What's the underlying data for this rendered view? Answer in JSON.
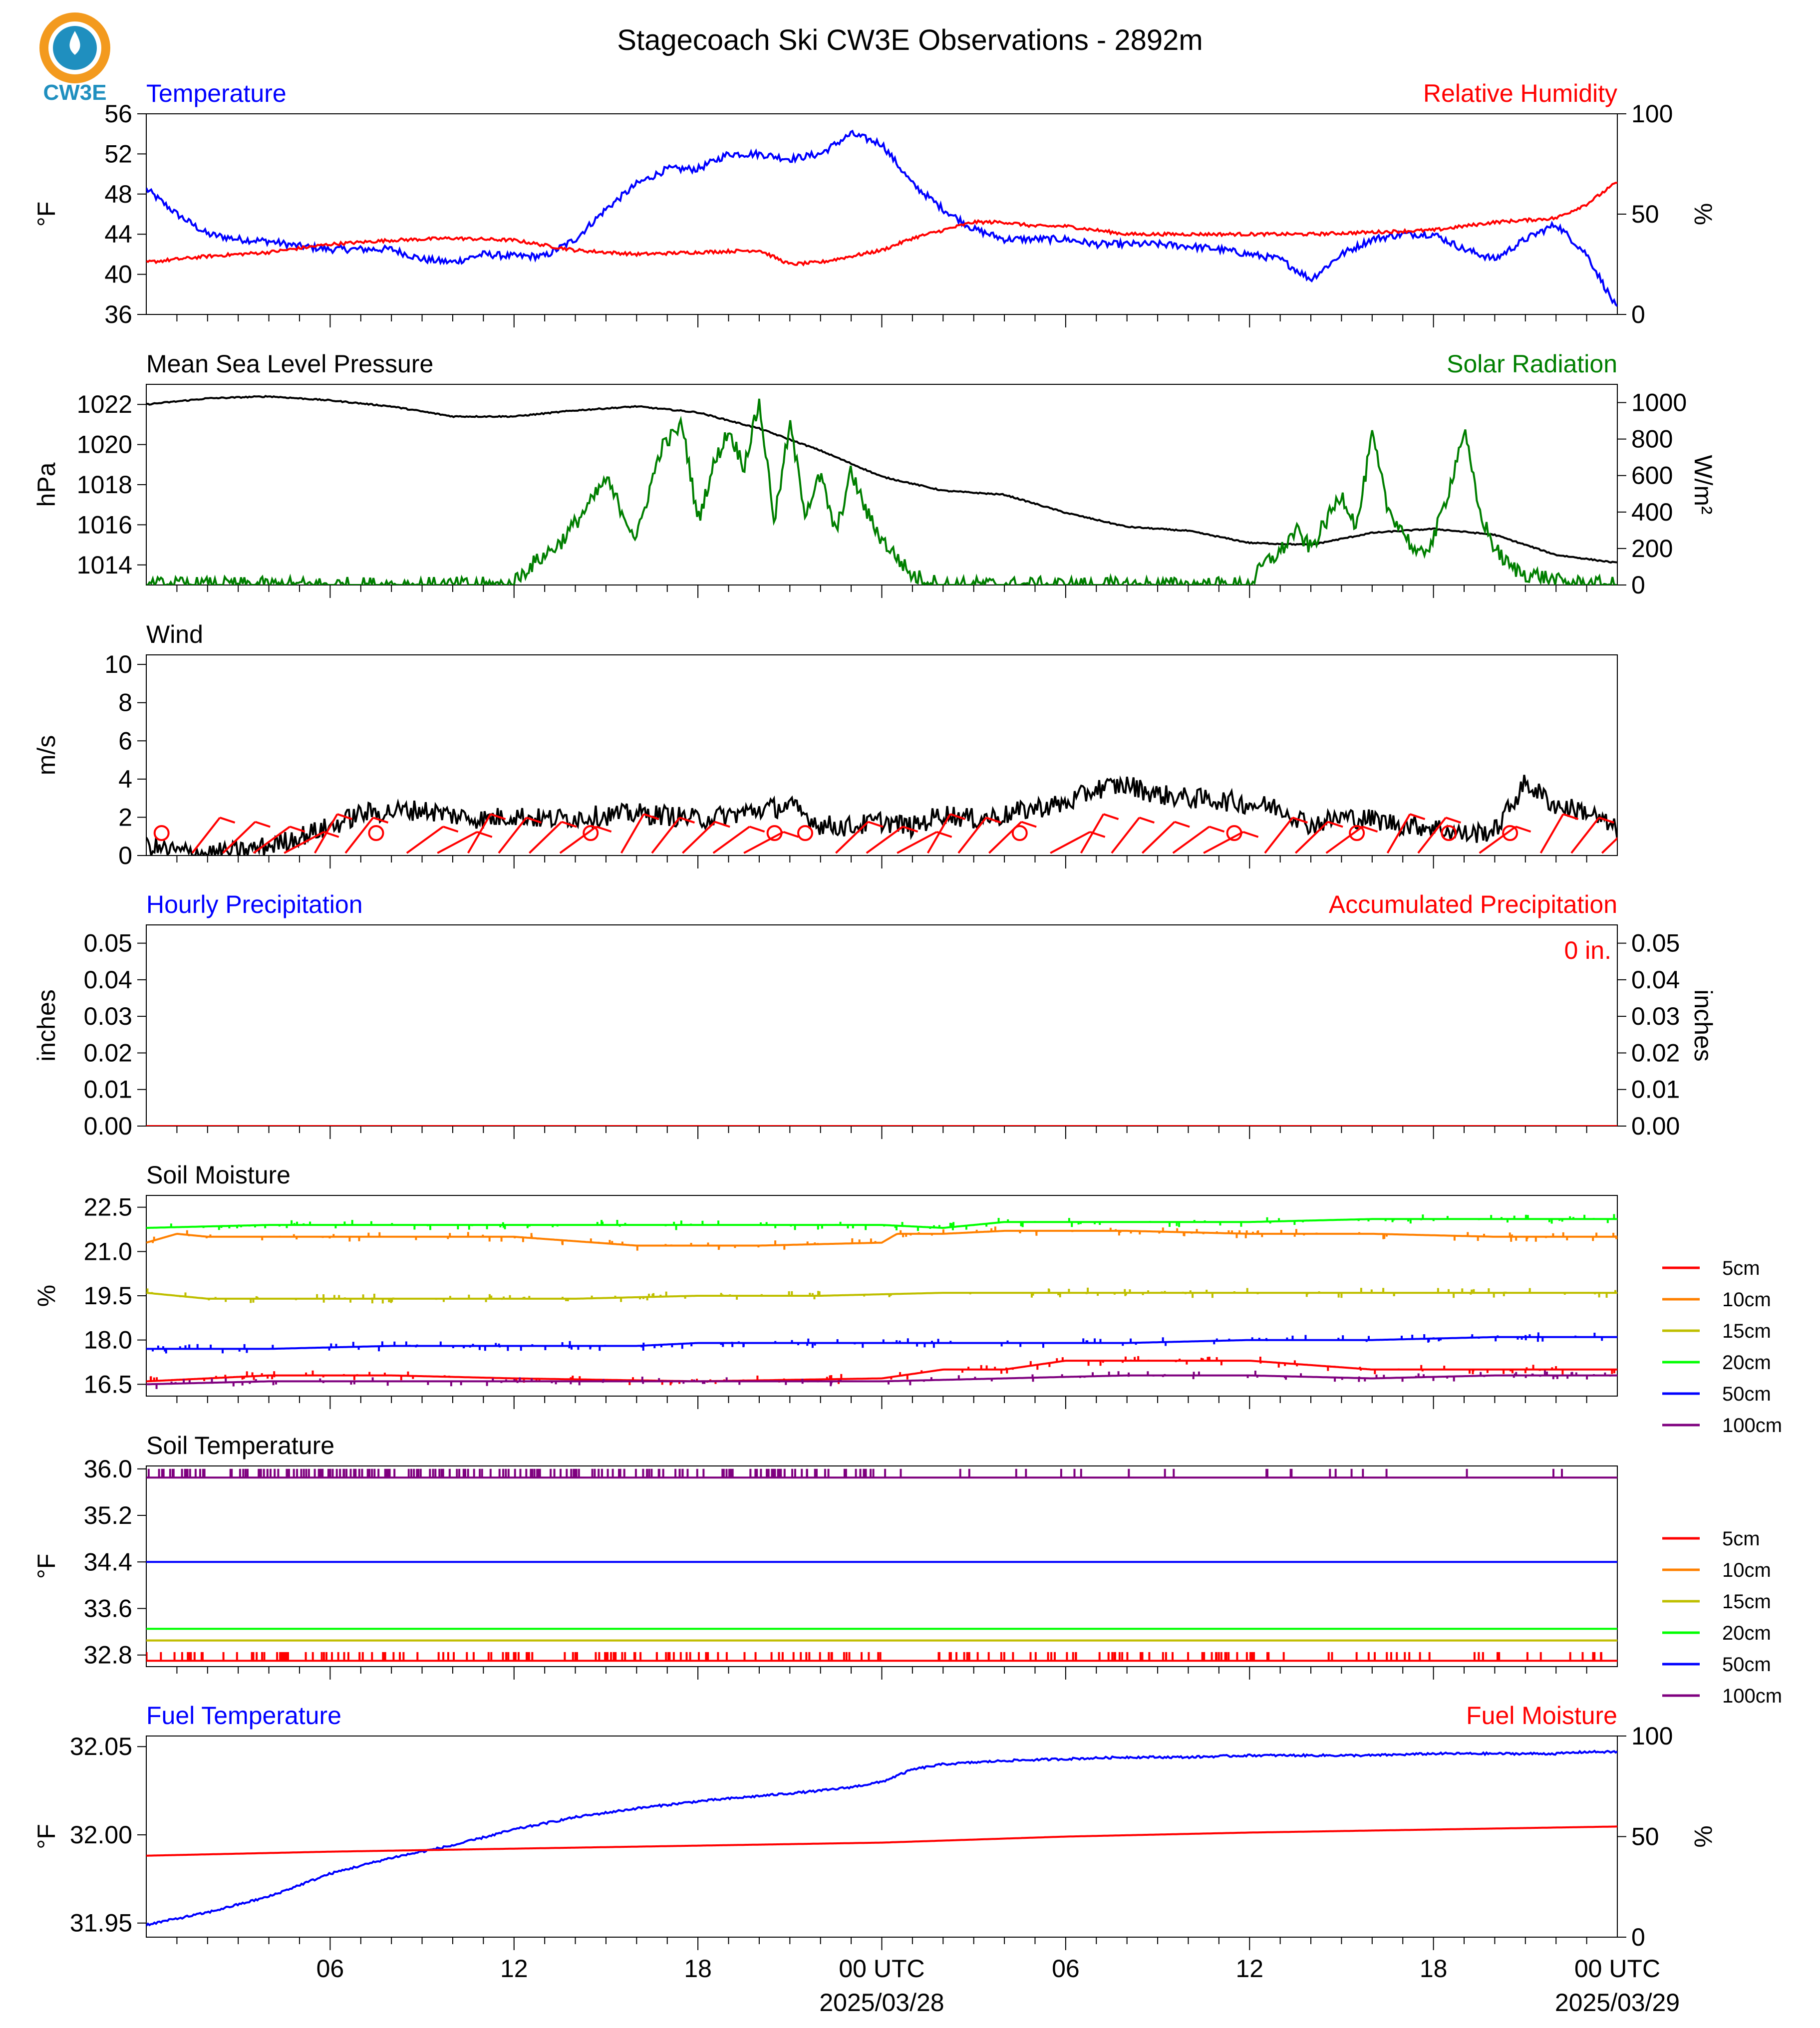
{
  "title": "Stagecoach Ski CW3E Observations - 2892m",
  "logo": {
    "text": "CW3E",
    "icon": "cw3e-logo-icon"
  },
  "colors": {
    "blue": "#0000ff",
    "red": "#ff0000",
    "green": "#007f00",
    "black": "#000000",
    "orange": "#ff8000",
    "olive": "#bfbf00",
    "lime": "#00ff00",
    "purple": "#7f007f"
  },
  "time_axis": {
    "tick_labels": [
      "06",
      "12",
      "18",
      "00 UTC",
      "06",
      "12",
      "18",
      "00 UTC"
    ],
    "date_labels": [
      "2025/03/28",
      "2025/03/29"
    ]
  },
  "chart_data": [
    {
      "id": "temperature_rh",
      "type": "line",
      "title_left": "Temperature",
      "title_right": "Relative Humidity",
      "ylabel": "°F",
      "ylabel_right": "%",
      "ylim": [
        36,
        56
      ],
      "ylim_right": [
        0,
        100
      ],
      "yticks": [
        36,
        40,
        44,
        48,
        52,
        56
      ],
      "yticks_right": [
        0,
        50,
        100
      ],
      "series": [
        {
          "axis": "left",
          "color": "#0000ff",
          "x": [
            0,
            1,
            2,
            3,
            4,
            5,
            6,
            7,
            8,
            9,
            10,
            11,
            12,
            13,
            14,
            15,
            16,
            17,
            18,
            19,
            20,
            21,
            22,
            23,
            24,
            25,
            26,
            27,
            28,
            29,
            30,
            31,
            32,
            33,
            34,
            35,
            36,
            37,
            38,
            39,
            40,
            41,
            42,
            43,
            44,
            45,
            46,
            47,
            48
          ],
          "y": [
            48.5,
            46,
            44,
            43.5,
            43.3,
            42.8,
            42.5,
            42.5,
            42.5,
            41.5,
            41.2,
            42,
            41.8,
            41.8,
            43.5,
            46.5,
            49,
            50.5,
            50.5,
            52,
            52,
            51.5,
            52,
            54,
            53,
            49,
            46.5,
            44.5,
            43.5,
            43.5,
            43.5,
            43,
            43,
            43,
            42.8,
            42.5,
            42,
            41.5,
            39.5,
            42,
            43.5,
            44,
            44,
            42.5,
            41.5,
            43.5,
            45,
            42,
            36.5
          ]
        },
        {
          "axis": "right",
          "color": "#ff0000",
          "x": [
            0,
            2,
            4,
            6,
            8,
            10,
            12,
            14,
            16,
            18,
            20,
            21,
            22,
            24,
            25,
            26,
            27,
            28,
            29,
            30,
            32,
            34,
            36,
            38,
            40,
            42,
            44,
            46,
            47,
            48
          ],
          "y": [
            26,
            29,
            31,
            35,
            37,
            38,
            37,
            32,
            30,
            31,
            32,
            25,
            26,
            32,
            38,
            42,
            46,
            46,
            44,
            44,
            40,
            40,
            40,
            40,
            41,
            42,
            46,
            48,
            55,
            66
          ]
        }
      ]
    },
    {
      "id": "pressure_solar",
      "type": "line",
      "title_left": "Mean Sea Level Pressure",
      "title_right": "Solar Radiation",
      "ylabel": "hPa",
      "ylabel_right": "W/m²",
      "ylim": [
        1013,
        1023
      ],
      "ylim_right": [
        0,
        1100
      ],
      "yticks": [
        1014,
        1016,
        1018,
        1020,
        1022
      ],
      "yticks_right": [
        0,
        200,
        400,
        600,
        800,
        1000
      ],
      "series": [
        {
          "axis": "left",
          "color": "#000000",
          "x": [
            0,
            2,
            4,
            6,
            8,
            10,
            12,
            14,
            16,
            18,
            20,
            22,
            24,
            26,
            28,
            30,
            32,
            34,
            36,
            38,
            40,
            42,
            44,
            46,
            48
          ],
          "y": [
            1022,
            1022.3,
            1022.4,
            1022.2,
            1021.9,
            1021.4,
            1021.4,
            1021.7,
            1021.9,
            1021.6,
            1020.8,
            1019.7,
            1018.4,
            1017.7,
            1017.5,
            1016.6,
            1015.9,
            1015.7,
            1015.1,
            1015,
            1015.6,
            1015.8,
            1015.5,
            1014.5,
            1014.1
          ]
        },
        {
          "axis": "right",
          "color": "#007f00",
          "x": [
            0,
            11.9,
            12.5,
            13.5,
            14.5,
            15,
            16,
            16.3,
            16.8,
            17.5,
            18,
            18.5,
            19,
            19.5,
            20,
            20.5,
            21,
            21.5,
            22,
            22.5,
            23,
            23.5,
            24,
            24.5,
            25,
            26,
            36,
            36.5,
            37,
            37.5,
            38,
            38.5,
            39,
            39.5,
            40,
            40.5,
            41,
            41.5,
            42,
            42.5,
            43,
            43.5,
            44,
            44.5,
            45,
            45.5,
            46,
            46.5,
            47,
            48
          ],
          "y": [
            0,
            0,
            100,
            230,
            450,
            580,
            250,
            450,
            750,
            880,
            350,
            650,
            850,
            650,
            1000,
            350,
            880,
            400,
            600,
            280,
            620,
            400,
            250,
            150,
            50,
            0,
            0,
            120,
            180,
            300,
            200,
            350,
            500,
            320,
            820,
            420,
            300,
            150,
            250,
            520,
            850,
            400,
            200,
            100,
            60,
            50,
            20,
            10,
            5,
            0
          ]
        }
      ]
    },
    {
      "id": "wind",
      "type": "line",
      "title_left": "Wind",
      "ylabel": "m/s",
      "ylim": [
        0,
        10.5
      ],
      "yticks": [
        0,
        2,
        4,
        6,
        8,
        10
      ],
      "series": [
        {
          "axis": "left",
          "color": "#000000",
          "x": [
            0,
            1,
            2,
            3,
            4,
            5,
            6,
            7,
            8,
            9,
            10,
            11,
            12,
            13,
            14,
            15,
            16,
            17,
            18,
            19,
            20,
            21,
            22,
            23,
            24,
            25,
            26,
            27,
            28,
            29,
            30,
            31,
            32,
            33,
            34,
            35,
            36,
            37,
            38,
            39,
            40,
            41,
            42,
            43,
            44,
            45,
            46,
            47,
            48
          ],
          "y": [
            0.5,
            0.2,
            0.1,
            0.2,
            0.5,
            1,
            1.5,
            2.2,
            2.3,
            2.4,
            2.1,
            1.9,
            2.1,
            1.9,
            2,
            2.1,
            2.2,
            2.1,
            1.9,
            2.1,
            2.4,
            2.6,
            1.6,
            1.5,
            1.8,
            1.5,
            2.2,
            1.9,
            2.1,
            2.5,
            2.7,
            3.5,
            3.7,
            3.2,
            3,
            2.9,
            2.7,
            2.5,
            1.6,
            2,
            1.9,
            1.6,
            1.5,
            1.1,
            1.3,
            3.8,
            2.6,
            2.3,
            1.3
          ]
        }
      ],
      "barbs": {
        "color": "#ff0000",
        "count": 48
      }
    },
    {
      "id": "precipitation",
      "type": "line",
      "title_left": "Hourly Precipitation",
      "title_right": "Accumulated Precipitation",
      "ylabel": "inches",
      "ylabel_right": "inches",
      "ylim": [
        0,
        0.055
      ],
      "yticks": [
        0.0,
        0.01,
        0.02,
        0.03,
        0.04,
        0.05
      ],
      "annotation": "0 in.",
      "series": [
        {
          "axis": "left",
          "color": "#0000ff",
          "x": [
            0,
            48
          ],
          "y": [
            0,
            0
          ]
        },
        {
          "axis": "left",
          "color": "#ff0000",
          "x": [
            0,
            48
          ],
          "y": [
            0,
            0
          ]
        }
      ]
    },
    {
      "id": "soil_moisture",
      "type": "line",
      "title_left": "Soil Moisture",
      "ylabel": "%",
      "ylim": [
        16.1,
        22.9
      ],
      "yticks": [
        16.5,
        18.0,
        19.5,
        21.0,
        22.5
      ],
      "legend_position": "right",
      "series": [
        {
          "name": "5cm",
          "color": "#ff0000",
          "x": [
            0,
            2,
            4,
            8,
            12,
            18,
            24,
            26,
            28,
            30,
            36,
            40,
            44,
            46,
            48
          ],
          "y": [
            16.6,
            16.7,
            16.8,
            16.8,
            16.7,
            16.6,
            16.7,
            17.0,
            17.0,
            17.3,
            17.3,
            17.0,
            17.0,
            17.0,
            17.0
          ]
        },
        {
          "name": "10cm",
          "color": "#ff8000",
          "x": [
            0,
            1,
            2,
            6,
            10,
            12,
            16,
            20,
            24,
            24.5,
            26,
            28,
            32,
            36,
            40,
            44,
            48
          ],
          "y": [
            21.3,
            21.6,
            21.5,
            21.5,
            21.5,
            21.5,
            21.2,
            21.2,
            21.3,
            21.6,
            21.6,
            21.7,
            21.7,
            21.6,
            21.6,
            21.5,
            21.5
          ]
        },
        {
          "name": "15cm",
          "color": "#bfbf00",
          "x": [
            0,
            2,
            6,
            10,
            14,
            18,
            22,
            26,
            30,
            34,
            38,
            42,
            46,
            48
          ],
          "y": [
            19.6,
            19.4,
            19.4,
            19.4,
            19.4,
            19.5,
            19.5,
            19.6,
            19.6,
            19.6,
            19.6,
            19.6,
            19.6,
            19.6
          ]
        },
        {
          "name": "20cm",
          "color": "#00ff00",
          "x": [
            0,
            4,
            8,
            12,
            16,
            20,
            24,
            26,
            28,
            32,
            36,
            40,
            44,
            48
          ],
          "y": [
            21.8,
            21.9,
            21.9,
            21.9,
            21.9,
            21.9,
            21.9,
            21.8,
            22.0,
            22.0,
            22.0,
            22.1,
            22.1,
            22.1
          ]
        },
        {
          "name": "50cm",
          "color": "#0000ff",
          "x": [
            0,
            4,
            8,
            12,
            16,
            18,
            20,
            24,
            28,
            32,
            36,
            40,
            44,
            48
          ],
          "y": [
            17.7,
            17.7,
            17.8,
            17.8,
            17.8,
            17.9,
            17.9,
            17.9,
            17.9,
            17.9,
            18.0,
            18.0,
            18.1,
            18.1
          ]
        },
        {
          "name": "100cm",
          "color": "#7f007f",
          "x": [
            0,
            4,
            8,
            12,
            16,
            20,
            24,
            28,
            32,
            36,
            40,
            44,
            48
          ],
          "y": [
            16.5,
            16.6,
            16.6,
            16.6,
            16.6,
            16.6,
            16.6,
            16.7,
            16.8,
            16.8,
            16.7,
            16.8,
            16.8
          ]
        }
      ]
    },
    {
      "id": "soil_temperature",
      "type": "line",
      "title_left": "Soil Temperature",
      "ylabel": "°F",
      "ylim": [
        32.6,
        36.05
      ],
      "yticks": [
        32.8,
        33.6,
        34.4,
        35.2,
        36.0
      ],
      "legend_position": "right",
      "series": [
        {
          "name": "5cm",
          "color": "#ff0000",
          "x": [
            0,
            48
          ],
          "y": [
            32.7,
            32.7
          ]
        },
        {
          "name": "10cm",
          "color": "#ff8000",
          "x": [
            0,
            48
          ],
          "y": [
            33.05,
            33.05
          ]
        },
        {
          "name": "15cm",
          "color": "#bfbf00",
          "x": [
            0,
            48
          ],
          "y": [
            33.05,
            33.05
          ]
        },
        {
          "name": "20cm",
          "color": "#00ff00",
          "x": [
            0,
            48
          ],
          "y": [
            33.25,
            33.25
          ]
        },
        {
          "name": "50cm",
          "color": "#0000ff",
          "x": [
            0,
            48
          ],
          "y": [
            34.4,
            34.4
          ]
        },
        {
          "name": "100cm",
          "color": "#7f007f",
          "x": [
            0,
            48
          ],
          "y": [
            35.85,
            35.85
          ]
        }
      ]
    },
    {
      "id": "fuel",
      "type": "line",
      "title_left": "Fuel Temperature",
      "title_right": "Fuel Moisture",
      "ylabel": "°F",
      "ylabel_right": "%",
      "ylim": [
        31.942,
        32.056
      ],
      "ylim_right": [
        0,
        100
      ],
      "yticks": [
        31.95,
        32.0,
        32.05
      ],
      "yticks_right": [
        0,
        50,
        100
      ],
      "series": [
        {
          "axis": "left",
          "color": "#0000ff",
          "x": [
            0,
            2,
            4,
            6,
            8,
            10,
            12,
            14,
            16,
            18,
            20,
            22,
            23,
            24,
            25,
            26,
            28,
            30,
            32,
            34,
            36,
            38,
            40,
            42,
            44,
            46,
            47,
            48
          ],
          "y": [
            31.949,
            31.956,
            31.965,
            31.978,
            31.987,
            31.994,
            32.003,
            32.01,
            32.015,
            32.019,
            32.022,
            32.025,
            32.027,
            32.03,
            32.037,
            32.04,
            32.042,
            32.043,
            32.044,
            32.044,
            32.045,
            32.045,
            32.045,
            32.046,
            32.046,
            32.046,
            32.047,
            32.047
          ]
        },
        {
          "axis": "right",
          "color": "#ff0000",
          "x": [
            0,
            6,
            12,
            18,
            24,
            30,
            36,
            42,
            48
          ],
          "y": [
            40.5,
            42.5,
            44,
            45.5,
            47,
            50,
            52,
            53.5,
            55
          ]
        }
      ]
    }
  ],
  "soil_legend": [
    "5cm",
    "10cm",
    "15cm",
    "20cm",
    "50cm",
    "100cm"
  ]
}
